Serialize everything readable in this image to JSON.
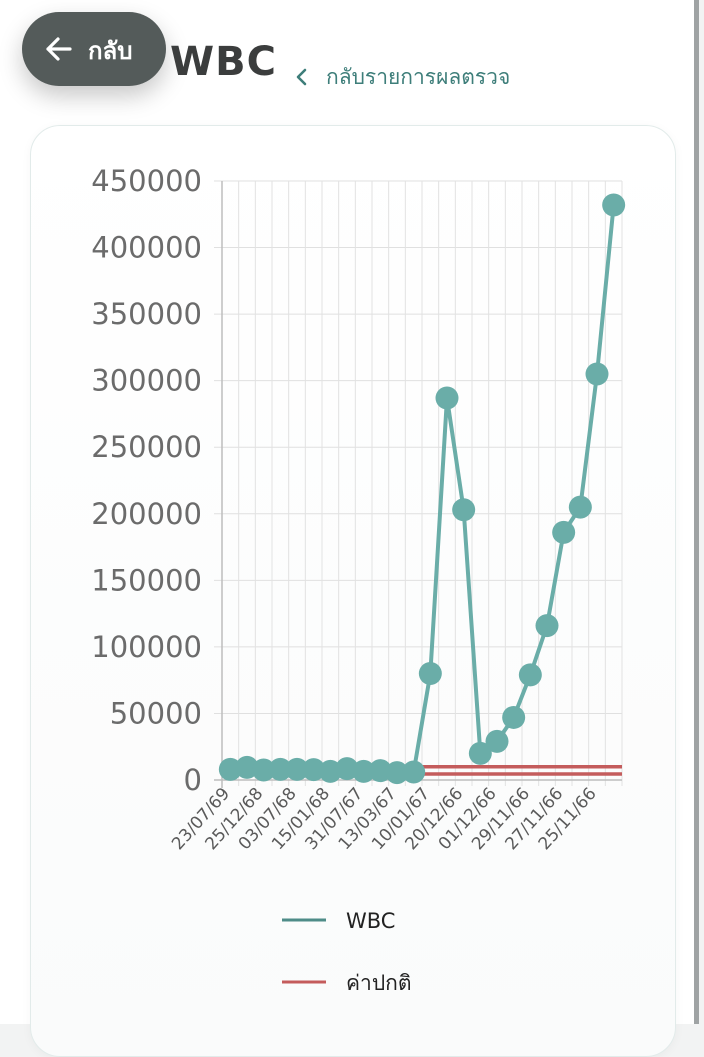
{
  "header": {
    "back_button_label": "กลับ",
    "page_title": "WBC",
    "back_link_label": "กลับรายการผลตรวจ"
  },
  "colors": {
    "series": "#6aada8",
    "normal": "#c45c5c",
    "back_button_bg": "#545b5a",
    "link": "#3e7e7a"
  },
  "icons": {
    "back_button_icon": "arrow-left-icon",
    "back_link_icon": "chevron-left-icon"
  },
  "chart_data": {
    "type": "line",
    "title": "",
    "xlabel": "",
    "ylabel": "",
    "ylim": [
      0,
      450000
    ],
    "yticks": [
      "450000",
      "400000",
      "350000",
      "300000",
      "250000",
      "200000",
      "150000",
      "100000",
      "50000",
      "0"
    ],
    "x_tick_labels": [
      "23/07/69",
      "25/12/68",
      "03/07/68",
      "15/01/68",
      "31/07/67",
      "13/03/67",
      "10/01/67",
      "20/12/66",
      "01/12/66",
      "29/11/66",
      "27/11/66",
      "25/11/66"
    ],
    "grid": true,
    "legend_position": "bottom",
    "series": [
      {
        "name": "WBC",
        "values": [
          8000,
          9500,
          7500,
          8000,
          8000,
          7800,
          6500,
          8500,
          6500,
          7000,
          5500,
          6000,
          80000,
          287000,
          203000,
          20000,
          29000,
          47000,
          79000,
          116000,
          186000,
          205000,
          305000,
          432000
        ]
      },
      {
        "name": "ค่าปกติ",
        "lower": 4500,
        "upper": 10000
      }
    ]
  }
}
